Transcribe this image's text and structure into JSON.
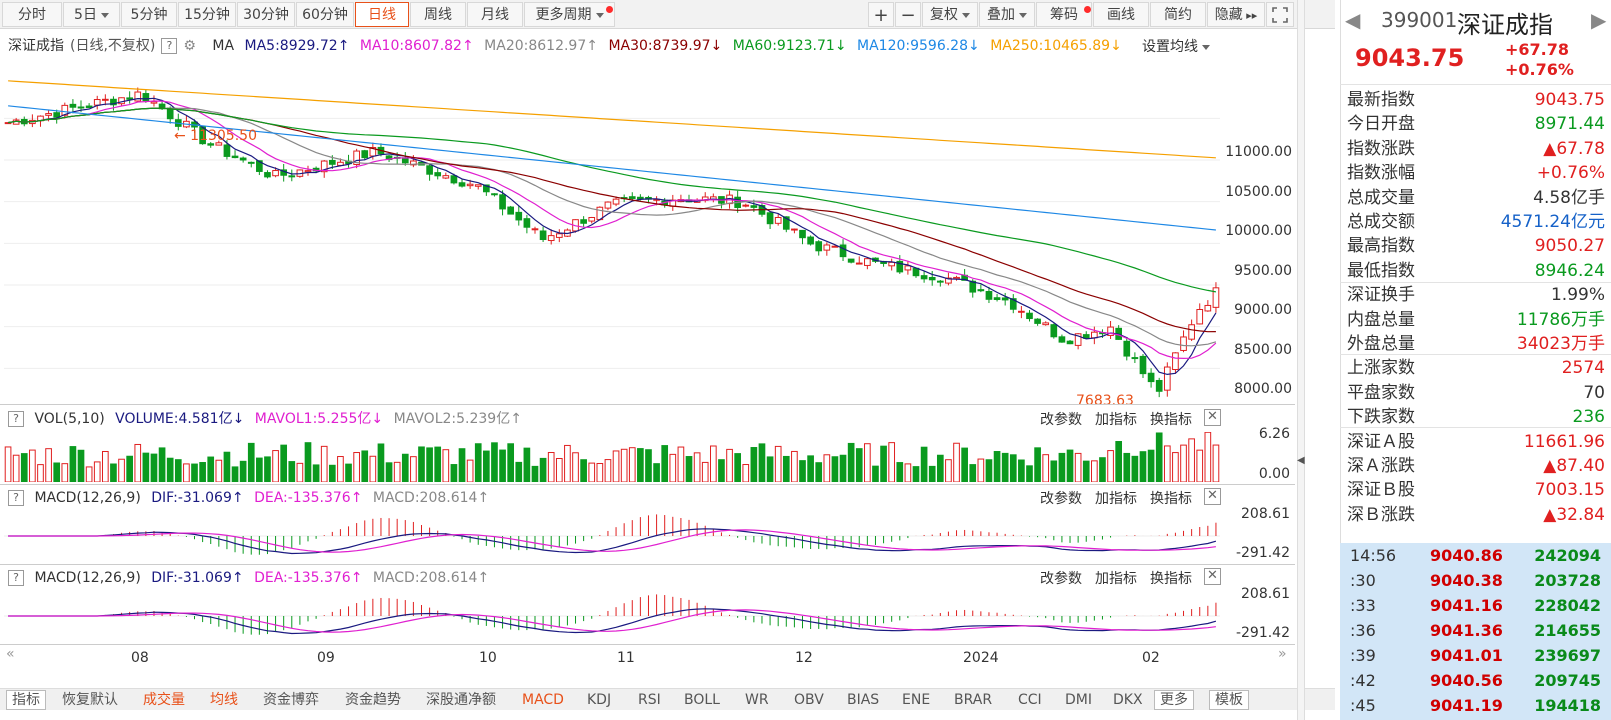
{
  "toolbar": {
    "periods": [
      "分时",
      "5日",
      "5分钟",
      "15分钟",
      "30分钟",
      "60分钟",
      "日线",
      "周线",
      "月线",
      "更多周期"
    ],
    "active_period": "日线",
    "right_buttons": [
      "+",
      "−",
      "复权",
      "叠加",
      "筹码",
      "画线",
      "简约",
      "隐藏"
    ]
  },
  "chart": {
    "name": "深证成指",
    "mode": "(日线,不复权)",
    "ma_label": "MA",
    "ma5": "MA5:8929.72",
    "ma10": "MA10:8607.82",
    "ma20": "MA20:8612.97",
    "ma30": "MA30:8739.97",
    "ma60": "MA60:9123.71",
    "ma120": "MA120:9596.28",
    "ma250": "MA250:10465.89",
    "settings": "设置均线",
    "high_mark": "11305.50",
    "low_mark": "7683.63",
    "y_labels": [
      "11000.00",
      "10500.00",
      "10000.00",
      "9500.00",
      "9000.00",
      "8500.00",
      "8000.00"
    ],
    "x_labels": [
      "08",
      "09",
      "10",
      "11",
      "12",
      "2024",
      "02"
    ]
  },
  "vol": {
    "name": "VOL(5,10)",
    "volume": "VOLUME:4.581亿",
    "mavol1": "MAVOL1:5.255亿",
    "mavol2": "MAVOL2:5.239亿",
    "y_top": "6.26",
    "y_bottom": "0.00"
  },
  "macd": {
    "name": "MACD(12,26,9)",
    "dif": "DIF:-31.069",
    "dea": "DEA:-135.376",
    "macd": "MACD:208.614",
    "y_top": "208.61",
    "y_bottom": "-291.42"
  },
  "pane_buttons": {
    "params": "改参数",
    "add": "加指标",
    "switch": "换指标"
  },
  "bottom_tabs": [
    "指标",
    "恢复默认",
    "成交量",
    "均线",
    "资金博弈",
    "资金趋势",
    "深股通净额",
    "MACD",
    "KDJ",
    "RSI",
    "BOLL",
    "WR",
    "OBV",
    "BIAS",
    "ENE",
    "BRAR",
    "CCI",
    "DMI",
    "DKX",
    "更多",
    "模板"
  ],
  "quote": {
    "code": "399001",
    "name": "深证成指",
    "price": "9043.75",
    "change": "+67.78",
    "change_pct": "+0.76%",
    "rows": [
      {
        "k": "最新指数",
        "v": "9043.75",
        "c": "red"
      },
      {
        "k": "今日开盘",
        "v": "8971.44",
        "c": "green"
      },
      {
        "k": "指数涨跌",
        "v": "▲67.78",
        "c": "red"
      },
      {
        "k": "指数涨幅",
        "v": "+0.76%",
        "c": "red"
      },
      {
        "k": "总成交量",
        "v": "4.58亿手",
        "c": "dark"
      },
      {
        "k": "总成交额",
        "v": "4571.24亿元",
        "c": "blue"
      },
      {
        "k": "最高指数",
        "v": "9050.27",
        "c": "red"
      },
      {
        "k": "最低指数",
        "v": "8946.24",
        "c": "green"
      },
      {
        "k": "深证换手",
        "v": "1.99%",
        "c": "dark"
      },
      {
        "k": "内盘总量",
        "v": "11786万手",
        "c": "green"
      },
      {
        "k": "外盘总量",
        "v": "34023万手",
        "c": "red"
      },
      {
        "k": "上涨家数",
        "v": "2574",
        "c": "red"
      },
      {
        "k": "平盘家数",
        "v": "70",
        "c": "dark"
      },
      {
        "k": "下跌家数",
        "v": "236",
        "c": "green"
      },
      {
        "k": "深证Ａ股",
        "v": "11661.96",
        "c": "red"
      },
      {
        "k": "深Ａ涨跌",
        "v": "▲87.40",
        "c": "red"
      },
      {
        "k": "深证Ｂ股",
        "v": "7003.15",
        "c": "red"
      },
      {
        "k": "深Ｂ涨跌",
        "v": "▲32.84",
        "c": "red"
      }
    ],
    "ticks": [
      {
        "t": "14:56",
        "p": "9040.86",
        "v": "242094"
      },
      {
        "t": ":30",
        "p": "9040.38",
        "v": "203728"
      },
      {
        "t": ":33",
        "p": "9041.16",
        "v": "228042"
      },
      {
        "t": ":36",
        "p": "9041.36",
        "v": "214655"
      },
      {
        "t": ":39",
        "p": "9041.01",
        "v": "239697"
      },
      {
        "t": ":42",
        "p": "9040.56",
        "v": "209745"
      },
      {
        "t": ":45",
        "p": "9041.19",
        "v": "194418"
      }
    ]
  },
  "colors": {
    "up": "#e02020",
    "down": "#0a9a1f",
    "ma5": "#1a1a80",
    "ma10": "#e020d0",
    "ma20": "#888888",
    "ma30": "#8b0000",
    "ma60": "#0a9a1f",
    "ma120": "#1e88e5",
    "ma250": "#f5a000",
    "accent": "#e8511a"
  }
}
